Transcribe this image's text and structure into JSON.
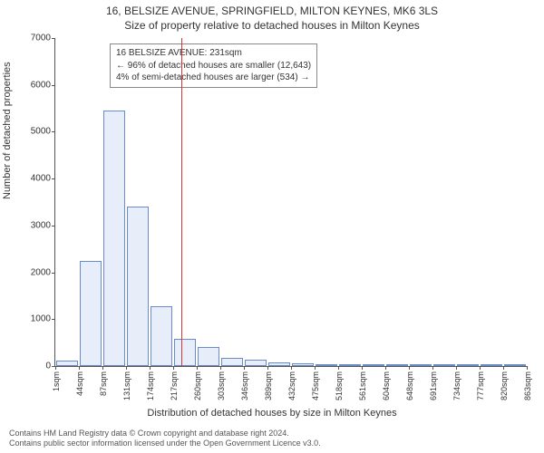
{
  "chart": {
    "type": "histogram",
    "title_line1": "16, BELSIZE AVENUE, SPRINGFIELD, MILTON KEYNES, MK6 3LS",
    "title_line2": "Size of property relative to detached houses in Milton Keynes",
    "ylabel": "Number of detached properties",
    "xlabel": "Distribution of detached houses by size in Milton Keynes",
    "ylim": [
      0,
      7000
    ],
    "ytick_step": 1000,
    "yticks": [
      0,
      1000,
      2000,
      3000,
      4000,
      5000,
      6000,
      7000
    ],
    "xtick_labels": [
      "1sqm",
      "44sqm",
      "87sqm",
      "131sqm",
      "174sqm",
      "217sqm",
      "260sqm",
      "303sqm",
      "346sqm",
      "389sqm",
      "432sqm",
      "475sqm",
      "518sqm",
      "561sqm",
      "604sqm",
      "648sqm",
      "691sqm",
      "734sqm",
      "777sqm",
      "820sqm",
      "863sqm"
    ],
    "bar_values": [
      120,
      2250,
      5450,
      3400,
      1280,
      580,
      400,
      170,
      140,
      70,
      60,
      20,
      15,
      10,
      8,
      6,
      5,
      3,
      2,
      2
    ],
    "bar_fill": "#e8eef9",
    "bar_stroke": "#6a8bc9",
    "axis_color": "#555555",
    "text_color": "#333333",
    "background_color": "#ffffff",
    "marker": {
      "value_sqm": 231,
      "color": "#d53636"
    },
    "annotation": {
      "line1": "16 BELSIZE AVENUE: 231sqm",
      "line2": "← 96% of detached houses are smaller (12,643)",
      "line3": "4% of semi-detached houses are larger (534) →",
      "border_color": "#888888"
    },
    "title_fontsize": 12,
    "label_fontsize": 11,
    "tick_fontsize": 10,
    "xtick_fontsize": 9
  },
  "footer": {
    "line1": "Contains HM Land Registry data © Crown copyright and database right 2024.",
    "line2": "Contains public sector information licensed under the Open Government Licence v3.0."
  }
}
